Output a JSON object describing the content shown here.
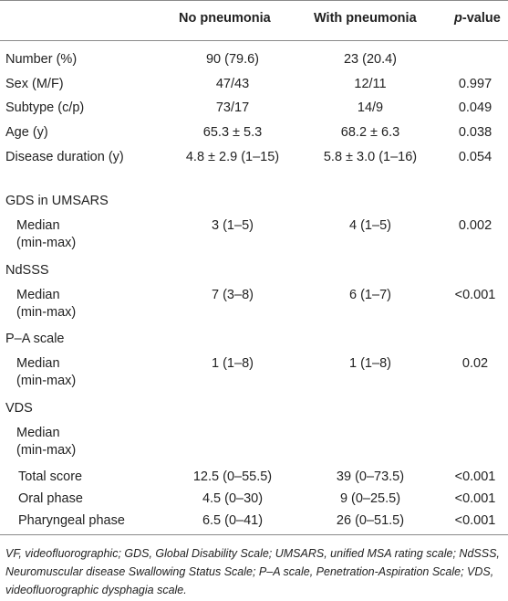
{
  "header": {
    "col_no": "No pneumonia",
    "col_with": "With pneumonia",
    "col_p_italic": "p",
    "col_p_rest": "-value"
  },
  "rows": [
    {
      "label": "Number (%)",
      "no": "90 (79.6)",
      "with": "23 (20.4)",
      "p": ""
    },
    {
      "label": "Sex (M/F)",
      "no": "47/43",
      "with": "12/11",
      "p": "0.997"
    },
    {
      "label": "Subtype (c/p)",
      "no": "73/17",
      "with": "14/9",
      "p": "0.049"
    },
    {
      "label": "Age (y)",
      "no": "65.3 ± 5.3",
      "with": "68.2 ± 6.3",
      "p": "0.038"
    },
    {
      "label": "Disease duration (y)",
      "no": "4.8 ± 2.9 (1–15)",
      "with": "5.8 ± 3.0 (1–16)",
      "p": "0.054"
    },
    {
      "label": "GDS in UMSARS",
      "no": "",
      "with": "",
      "p": ""
    },
    {
      "label": "Median (min-max)",
      "no": "3 (1–5)",
      "with": "4 (1–5)",
      "p": "0.002"
    },
    {
      "label": "NdSSS",
      "no": "",
      "with": "",
      "p": ""
    },
    {
      "label": "Median (min-max)",
      "no": "7 (3–8)",
      "with": "6 (1–7)",
      "p": "<0.001"
    },
    {
      "label": "P–A scale",
      "no": "",
      "with": "",
      "p": ""
    },
    {
      "label": "Median (min-max)",
      "no": "1 (1–8)",
      "with": "1 (1–8)",
      "p": "0.02"
    },
    {
      "label": "VDS",
      "no": "",
      "with": "",
      "p": ""
    },
    {
      "label": "Median (min-max)",
      "no": "",
      "with": "",
      "p": ""
    },
    {
      "label": "Total score",
      "no": "12.5 (0–55.5)",
      "with": "39 (0–73.5)",
      "p": "<0.001"
    },
    {
      "label": "Oral phase",
      "no": "4.5 (0–30)",
      "with": "9 (0–25.5)",
      "p": "<0.001"
    },
    {
      "label": "Pharyngeal phase",
      "no": "6.5 (0–41)",
      "with": "26 (0–51.5)",
      "p": "<0.001"
    }
  ],
  "footnote": "VF, videofluorographic; GDS, Global Disability Scale; UMSARS, unified MSA rating scale; NdSSS, Neuromuscular disease Swallowing Status Scale; P–A scale, Penetration-Aspiration Scale; VDS, videofluorographic dysphagia scale."
}
